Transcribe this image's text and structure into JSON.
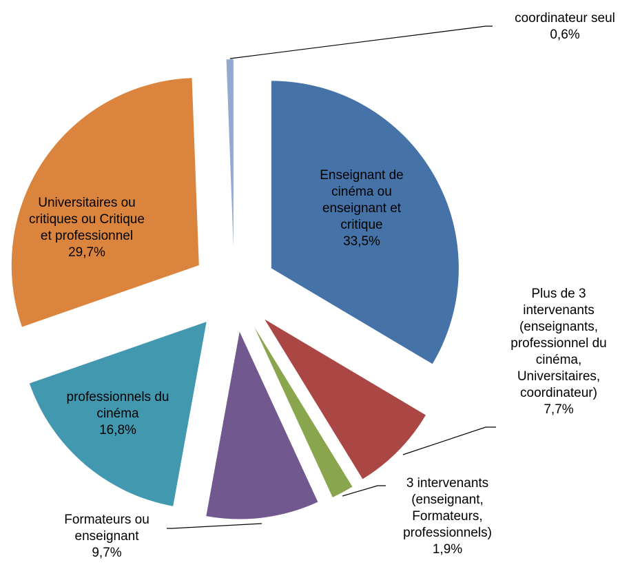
{
  "chart_data": {
    "type": "pie",
    "categories": [
      "Enseignant de cinéma ou enseignant et critique",
      "Plus de 3 intervenants (enseignants, professionnel du cinéma, Universitaires, coordinateur)",
      "3 intervenants (enseignant, Formateurs, professionnels)",
      "Formateurs ou enseignant",
      "professionnels du cinéma",
      "Universitaires ou critiques ou Critique et professionnel",
      "coordinateur seul"
    ],
    "values": [
      33.5,
      7.7,
      1.9,
      9.7,
      16.8,
      29.7,
      0.6
    ],
    "value_labels": [
      "33,5%",
      "7,7%",
      "1,9%",
      "9,7%",
      "16,8%",
      "29,7%",
      "0,6%"
    ],
    "colors": [
      "#4572a7",
      "#aa4643",
      "#89a54e",
      "#71588f",
      "#4198af",
      "#db843d",
      "#93a9cf"
    ]
  }
}
